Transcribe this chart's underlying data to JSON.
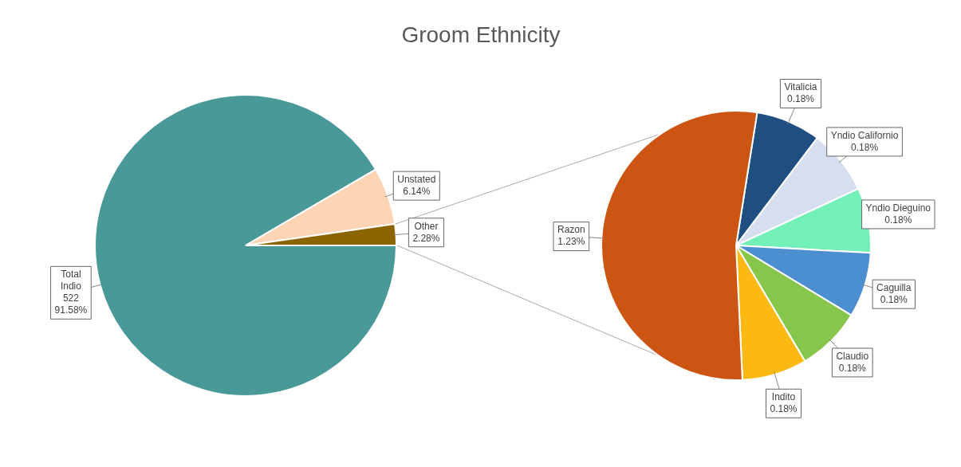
{
  "chart_data": [
    {
      "type": "pie",
      "title": "Groom Ethnicity",
      "categories": [
        "Total Indio",
        "Unstated",
        "Other"
      ],
      "values": [
        91.58,
        6.14,
        2.28
      ],
      "colors": [
        "#4a9999",
        "#fdd5b5",
        "#8b6400"
      ],
      "value_labels": [
        "522\n91.58%",
        "6.14%",
        "2.28%"
      ],
      "legend": false
    },
    {
      "type": "pie",
      "categories": [
        "Vitalicia",
        "Yndio Californio",
        "Yndio Dieguino",
        "Caguilla",
        "Claudio",
        "Indito",
        "Razon"
      ],
      "values": [
        0.18,
        0.18,
        0.18,
        0.18,
        0.18,
        0.18,
        1.23
      ],
      "colors": [
        "#1f4e80",
        "#d6dff0",
        "#73f0b8",
        "#4c8fd0",
        "#86c64a",
        "#fdb913",
        "#cc5514"
      ],
      "value_labels": [
        "0.18%",
        "0.18%",
        "0.18%",
        "0.18%",
        "0.18%",
        "0.18%",
        "1.23%"
      ],
      "legend": false
    }
  ]
}
